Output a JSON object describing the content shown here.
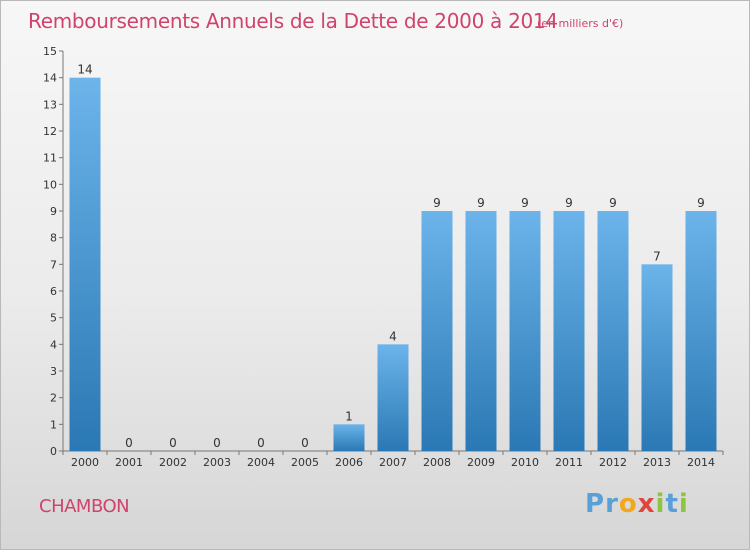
{
  "header": {
    "title": "Remboursements Annuels de la Dette de 2000 à 2014",
    "unit_note": "(en milliers d'€)"
  },
  "footer": {
    "commune": "CHAMBON",
    "logo_text": "Proxiti"
  },
  "colors": {
    "accent": "#d0436b",
    "bar_top": "#6cb4ea",
    "bar_bottom": "#2a78b4",
    "logo_p": "#5aa0d8",
    "logo_x": "#e0453c",
    "logo_i": "#8cc63f",
    "logo_o": "#f2a81d"
  },
  "chart_data": {
    "type": "bar",
    "title": "Remboursements Annuels de la Dette de 2000 à 2014",
    "subtitle": "(en milliers d'€)",
    "categories": [
      "2000",
      "2001",
      "2002",
      "2003",
      "2004",
      "2005",
      "2006",
      "2007",
      "2008",
      "2009",
      "2010",
      "2011",
      "2012",
      "2013",
      "2014"
    ],
    "values": [
      14,
      0,
      0,
      0,
      0,
      0,
      1,
      4,
      9,
      9,
      9,
      9,
      9,
      7,
      9
    ],
    "ylim": [
      0,
      15
    ],
    "yticks": [
      "0",
      "1",
      "2",
      "3",
      "4",
      "5",
      "6",
      "7",
      "8",
      "9",
      "10",
      "11",
      "12",
      "13",
      "14",
      "15"
    ],
    "grid": false,
    "xlabel": "",
    "ylabel": ""
  }
}
